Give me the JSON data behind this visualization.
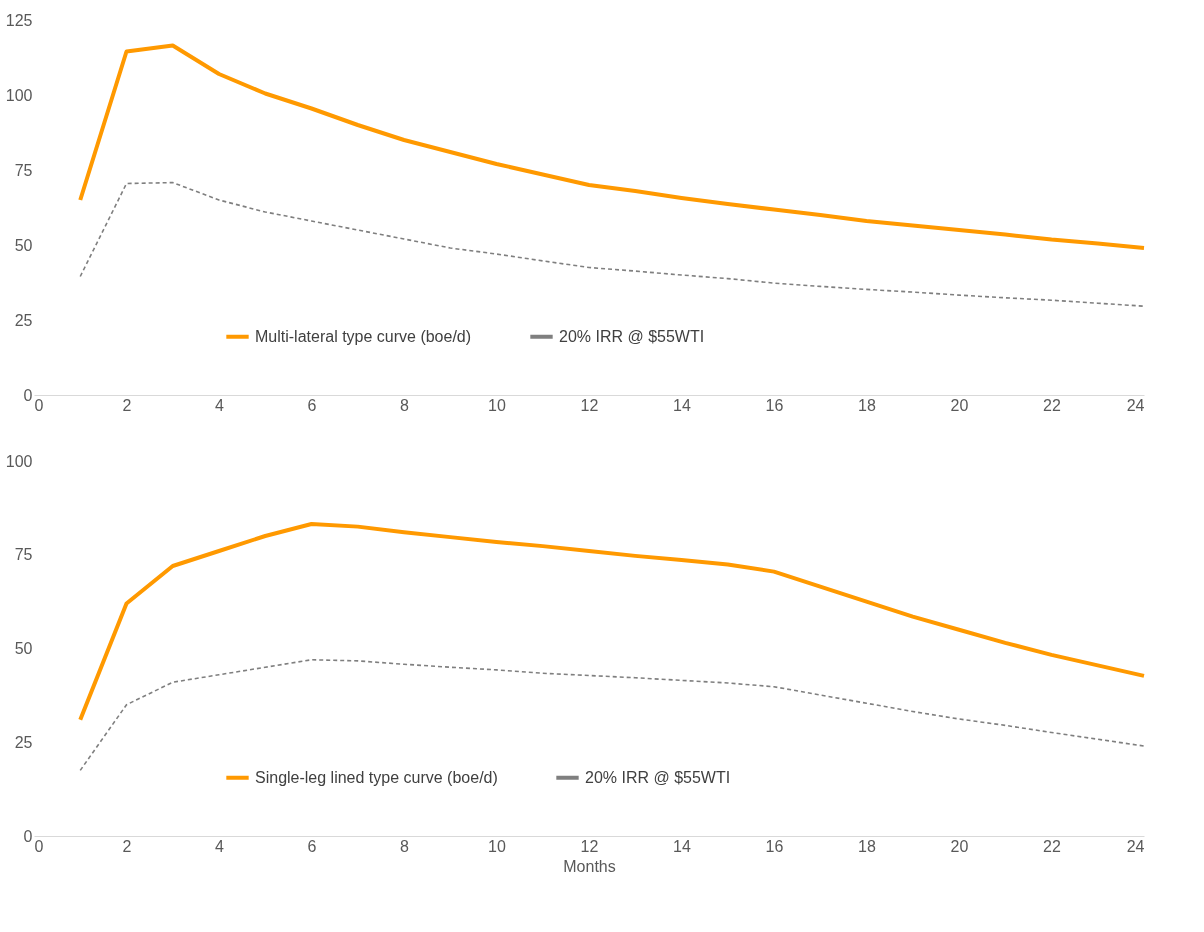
{
  "chart_data": [
    {
      "type": "line",
      "x": [
        1,
        2,
        3,
        4,
        5,
        6,
        7,
        8,
        9,
        10,
        11,
        12,
        13,
        14,
        15,
        16,
        17,
        18,
        19,
        20,
        21,
        22,
        23,
        24
      ],
      "xlim": [
        0,
        24
      ],
      "xticks": [
        0,
        2,
        4,
        6,
        8,
        10,
        12,
        14,
        16,
        18,
        20,
        22,
        24
      ],
      "ylim": [
        0,
        125
      ],
      "yticks": [
        0,
        25,
        50,
        75,
        100,
        125
      ],
      "grid": false,
      "legend": "bottom",
      "marker": "none",
      "series": [
        {
          "name": "Multi-lateral type curve (boe/d)",
          "color": "#ff9900",
          "line_style": "solid",
          "values": [
            65,
            114.5,
            116.5,
            107,
            100.5,
            95.5,
            90,
            85,
            81,
            77,
            73.5,
            70,
            68,
            65.7,
            63.7,
            61.8,
            60,
            58,
            56.5,
            55,
            53.5,
            51.8,
            50.5,
            49
          ]
        },
        {
          "name": "20% IRR @ $55WTI",
          "color": "#7f7f7f",
          "line_style": "dashed",
          "values": [
            39.5,
            70.5,
            70.8,
            65,
            61,
            58,
            55,
            52,
            49,
            47,
            44.7,
            42.5,
            41.3,
            40,
            38.8,
            37.3,
            36.2,
            35.2,
            34.3,
            33.3,
            32.4,
            31.6,
            30.6,
            29.6
          ]
        }
      ]
    },
    {
      "type": "line",
      "xlabel": "Months",
      "x": [
        1,
        2,
        3,
        4,
        5,
        6,
        7,
        8,
        9,
        10,
        11,
        12,
        13,
        14,
        15,
        16,
        17,
        18,
        19,
        20,
        21,
        22,
        23,
        24
      ],
      "xlim": [
        0,
        24
      ],
      "xticks": [
        0,
        2,
        4,
        6,
        8,
        10,
        12,
        14,
        16,
        18,
        20,
        22,
        24
      ],
      "ylim": [
        0,
        100
      ],
      "yticks": [
        0,
        25,
        50,
        75,
        100
      ],
      "grid": false,
      "legend": "bottom",
      "marker": "none",
      "series": [
        {
          "name": "Single-leg lined type curve (boe/d)",
          "color": "#ff9900",
          "line_style": "solid",
          "values": [
            31,
            62,
            72,
            76,
            80,
            83.2,
            82.5,
            81,
            79.7,
            78.4,
            77.3,
            76,
            74.7,
            73.6,
            72.4,
            70.5,
            66.5,
            62.5,
            58.5,
            55,
            51.5,
            48.3,
            45.5,
            42.7
          ]
        },
        {
          "name": "20% IRR @ $55WTI",
          "color": "#7f7f7f",
          "line_style": "dashed",
          "values": [
            17.5,
            35,
            41,
            43,
            45,
            47,
            46.7,
            45.8,
            45,
            44.3,
            43.4,
            42.8,
            42.2,
            41.5,
            40.8,
            39.8,
            37.6,
            35.4,
            33.2,
            31.2,
            29.5,
            27.6,
            25.8,
            24
          ]
        }
      ]
    }
  ]
}
